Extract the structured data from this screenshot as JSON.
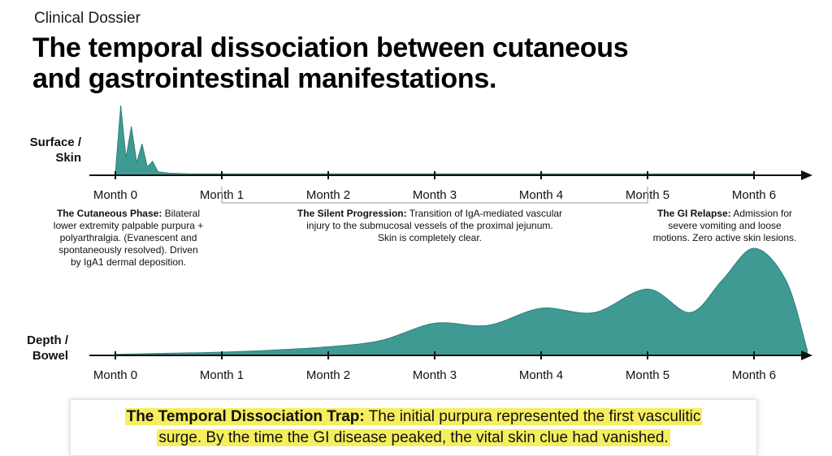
{
  "header": {
    "kicker": "Clinical Dossier",
    "title_line1": "The temporal dissociation between cutaneous",
    "title_line2": "and gastrointestinal manifestations."
  },
  "tracks": {
    "surface_label_line1": "Surface /",
    "surface_label_line2": "Skin",
    "depth_label_line1": "Depth /",
    "depth_label_line2": "Bowel"
  },
  "axis_ticks": [
    "Month 0",
    "Month 1",
    "Month 2",
    "Month 3",
    "Month 4",
    "Month 5",
    "Month 6"
  ],
  "annotations": {
    "cutaneous": {
      "heading": "The Cutaneous Phase:",
      "line1_rest": " Bilateral",
      "line2": "lower extremity palpable purpura +",
      "line3": "polyarthralgia. (Evanescent and",
      "line4": "spontaneously resolved). Driven",
      "line5": "by IgA1 dermal deposition."
    },
    "silent": {
      "heading": "The Silent Progression:",
      "line1_rest": " Transition of IgA-mediated vascular",
      "line2": "injury to the submucosal vessels of the proximal jejunum.",
      "line3": "Skin is completely clear."
    },
    "relapse": {
      "heading": "The GI Relapse:",
      "line1_rest": " Admission for",
      "line2": "severe vomiting and loose",
      "line3": "motions. Zero active skin lesions."
    }
  },
  "callout": {
    "heading": "The Temporal Dissociation Trap:",
    "line1_rest": " The initial purpura represented the first vasculitic",
    "line2": "surge. By the time the GI disease peaked, the vital skin clue had vanished."
  },
  "colors": {
    "area_fill": "#3f9a94",
    "area_stroke": "#2e7f7a",
    "axis": "#111111",
    "highlight": "#f6ee5e",
    "bracket": "#9a9a9a"
  },
  "chart_data": {
    "type": "area",
    "x_unit": "month",
    "series": [
      {
        "x": [
          0,
          0.05,
          0.1,
          0.15,
          0.2,
          0.25,
          0.3,
          0.35,
          0.4,
          0.5,
          0.7,
          1,
          2,
          3,
          4,
          5,
          6
        ],
        "values": [
          0.02,
          1.0,
          0.25,
          0.7,
          0.18,
          0.45,
          0.12,
          0.2,
          0.05,
          0.03,
          0.02,
          0.02,
          0.02,
          0.02,
          0.02,
          0.02,
          0.02
        ]
      },
      {
        "x": [
          0,
          0.5,
          1,
          1.5,
          2,
          2.5,
          3,
          3.5,
          4,
          4.5,
          5,
          5.4,
          5.7,
          6,
          6.3,
          6.5
        ],
        "values": [
          0.01,
          0.02,
          0.03,
          0.05,
          0.08,
          0.14,
          0.3,
          0.28,
          0.44,
          0.4,
          0.62,
          0.4,
          0.7,
          1.0,
          0.7,
          0.05
        ]
      }
    ]
  }
}
